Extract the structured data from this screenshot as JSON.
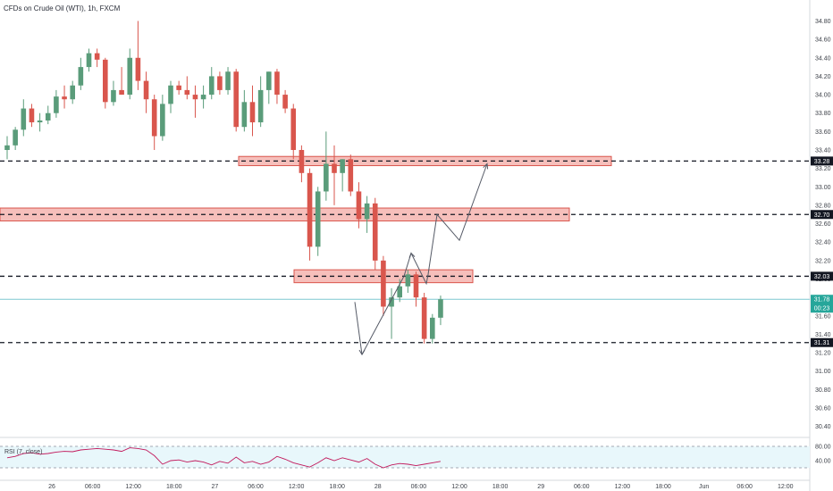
{
  "chart_data": {
    "type": "candlestick",
    "title": "CFDs on Crude Oil (WTI), 1h, FXCM",
    "colors": {
      "up": "#5a9c7a",
      "down": "#d9564d",
      "zone_fill": "#f3a9a4",
      "zone_stroke": "#d9564d",
      "current_line": "#7ec8d0",
      "rsi_line": "#c2185b",
      "rsi_band": "#e8f7fb",
      "tag_dark": "#131722",
      "tag_current": "#26a69a"
    },
    "ylim": [
      30.3,
      34.95
    ],
    "y_ticks": [
      "34.80",
      "34.60",
      "34.40",
      "34.20",
      "34.00",
      "33.80",
      "33.60",
      "33.40",
      "33.20",
      "33.00",
      "32.80",
      "32.60",
      "32.40",
      "32.20",
      "32.00",
      "31.80",
      "31.60",
      "31.40",
      "31.20",
      "31.00",
      "30.80",
      "30.60",
      "30.40"
    ],
    "x_ticks": [
      "26",
      "06:00",
      "12:00",
      "18:00",
      "27",
      "06:00",
      "12:00",
      "18:00",
      "28",
      "06:00",
      "12:00",
      "18:00",
      "29",
      "06:00",
      "12:00",
      "18:00",
      "Jun",
      "06:00",
      "12:00"
    ],
    "levels": [
      {
        "price": 33.28,
        "label": "33.28"
      },
      {
        "price": 32.7,
        "label": "32.70"
      },
      {
        "price": 32.03,
        "label": "32.03"
      },
      {
        "price": 31.31,
        "label": "31.31"
      }
    ],
    "current_price": {
      "price": 31.78,
      "label": "31.78",
      "countdown": "00:23"
    },
    "zones": [
      {
        "from_bar": 28,
        "to_bar": "proj-9",
        "low": 33.23,
        "high": 33.33
      },
      {
        "from_bar": 0,
        "to_bar": "proj-4",
        "low": 32.63,
        "high": 32.77
      },
      {
        "from_bar": 34,
        "to_bar": "proj-0",
        "low": 31.96,
        "high": 32.1
      }
    ],
    "projection_path": [
      {
        "bar": 40,
        "price": 31.18
      },
      {
        "bar": 45,
        "price": 32.03
      },
      {
        "bar": 47,
        "price": 32.28
      },
      {
        "bar": 49,
        "price": 31.95
      },
      {
        "bar": 50,
        "price": 32.05
      },
      {
        "bar": 51,
        "price": 32.7
      },
      {
        "bar": 53,
        "price": 32.42
      },
      {
        "bar": 56,
        "price": 33.25
      }
    ],
    "candles": [
      {
        "o": 33.4,
        "h": 33.55,
        "l": 33.3,
        "c": 33.45
      },
      {
        "o": 33.45,
        "h": 33.65,
        "l": 33.4,
        "c": 33.62
      },
      {
        "o": 33.62,
        "h": 33.95,
        "l": 33.55,
        "c": 33.85
      },
      {
        "o": 33.85,
        "h": 33.9,
        "l": 33.65,
        "c": 33.7
      },
      {
        "o": 33.7,
        "h": 33.8,
        "l": 33.6,
        "c": 33.72
      },
      {
        "o": 33.72,
        "h": 33.88,
        "l": 33.68,
        "c": 33.8
      },
      {
        "o": 33.8,
        "h": 34.05,
        "l": 33.75,
        "c": 33.98
      },
      {
        "o": 33.98,
        "h": 34.1,
        "l": 33.85,
        "c": 33.95
      },
      {
        "o": 33.95,
        "h": 34.15,
        "l": 33.9,
        "c": 34.1
      },
      {
        "o": 34.1,
        "h": 34.4,
        "l": 34.05,
        "c": 34.3
      },
      {
        "o": 34.3,
        "h": 34.5,
        "l": 34.25,
        "c": 34.45
      },
      {
        "o": 34.45,
        "h": 34.5,
        "l": 34.3,
        "c": 34.38
      },
      {
        "o": 34.38,
        "h": 34.4,
        "l": 33.85,
        "c": 33.92
      },
      {
        "o": 33.92,
        "h": 34.15,
        "l": 33.88,
        "c": 34.05
      },
      {
        "o": 34.05,
        "h": 34.3,
        "l": 34.0,
        "c": 34.0
      },
      {
        "o": 34.0,
        "h": 34.5,
        "l": 33.95,
        "c": 34.4
      },
      {
        "o": 34.4,
        "h": 34.8,
        "l": 34.05,
        "c": 34.15
      },
      {
        "o": 34.15,
        "h": 34.25,
        "l": 33.8,
        "c": 33.95
      },
      {
        "o": 33.95,
        "h": 34.0,
        "l": 33.4,
        "c": 33.55
      },
      {
        "o": 33.55,
        "h": 34.0,
        "l": 33.5,
        "c": 33.9
      },
      {
        "o": 33.9,
        "h": 34.15,
        "l": 33.8,
        "c": 34.1
      },
      {
        "o": 34.1,
        "h": 34.15,
        "l": 34.0,
        "c": 34.05
      },
      {
        "o": 34.05,
        "h": 34.2,
        "l": 33.95,
        "c": 34.0
      },
      {
        "o": 34.0,
        "h": 34.1,
        "l": 33.75,
        "c": 33.95
      },
      {
        "o": 33.95,
        "h": 34.1,
        "l": 33.85,
        "c": 34.0
      },
      {
        "o": 34.0,
        "h": 34.3,
        "l": 33.95,
        "c": 34.2
      },
      {
        "o": 34.2,
        "h": 34.25,
        "l": 34.0,
        "c": 34.05
      },
      {
        "o": 34.05,
        "h": 34.3,
        "l": 34.0,
        "c": 34.25
      },
      {
        "o": 34.25,
        "h": 34.28,
        "l": 33.6,
        "c": 33.65
      },
      {
        "o": 33.65,
        "h": 34.05,
        "l": 33.6,
        "c": 33.92
      },
      {
        "o": 33.92,
        "h": 34.1,
        "l": 33.55,
        "c": 33.7
      },
      {
        "o": 33.7,
        "h": 34.2,
        "l": 33.65,
        "c": 34.05
      },
      {
        "o": 34.05,
        "h": 34.25,
        "l": 33.9,
        "c": 34.25
      },
      {
        "o": 34.25,
        "h": 34.28,
        "l": 33.9,
        "c": 34.0
      },
      {
        "o": 34.0,
        "h": 34.05,
        "l": 33.8,
        "c": 33.85
      },
      {
        "o": 33.85,
        "h": 33.9,
        "l": 33.3,
        "c": 33.4
      },
      {
        "o": 33.4,
        "h": 33.45,
        "l": 33.05,
        "c": 33.15
      },
      {
        "o": 33.15,
        "h": 33.2,
        "l": 32.2,
        "c": 32.35
      },
      {
        "o": 32.35,
        "h": 33.0,
        "l": 32.25,
        "c": 32.95
      },
      {
        "o": 32.95,
        "h": 33.6,
        "l": 32.85,
        "c": 33.25
      },
      {
        "o": 33.25,
        "h": 33.45,
        "l": 32.8,
        "c": 33.15
      },
      {
        "o": 33.15,
        "h": 33.3,
        "l": 32.95,
        "c": 33.3
      },
      {
        "o": 33.3,
        "h": 33.35,
        "l": 32.9,
        "c": 32.95
      },
      {
        "o": 32.95,
        "h": 33.05,
        "l": 32.55,
        "c": 32.65
      },
      {
        "o": 32.65,
        "h": 32.9,
        "l": 32.5,
        "c": 32.82
      },
      {
        "o": 32.82,
        "h": 32.88,
        "l": 32.1,
        "c": 32.2
      },
      {
        "o": 32.2,
        "h": 32.25,
        "l": 31.6,
        "c": 31.7
      },
      {
        "o": 31.7,
        "h": 31.9,
        "l": 31.35,
        "c": 31.8
      },
      {
        "o": 31.8,
        "h": 32.0,
        "l": 31.75,
        "c": 31.92
      },
      {
        "o": 31.92,
        "h": 32.1,
        "l": 31.85,
        "c": 32.05
      },
      {
        "o": 32.05,
        "h": 32.08,
        "l": 31.7,
        "c": 31.8
      },
      {
        "o": 31.8,
        "h": 31.85,
        "l": 31.3,
        "c": 31.35
      },
      {
        "o": 31.35,
        "h": 31.62,
        "l": 31.3,
        "c": 31.58
      },
      {
        "o": 31.58,
        "h": 31.82,
        "l": 31.5,
        "c": 31.78
      }
    ],
    "bar_range": {
      "first_bar_x": 4,
      "bar_spacing": 8.4
    },
    "x_tick_bars": [
      6.5,
      12,
      17.5,
      23,
      28.5,
      34,
      39.5,
      45,
      50.5,
      56,
      61.5,
      67,
      72.5,
      78,
      83.5,
      89,
      94.5,
      100,
      105.5
    ],
    "rsi": {
      "label": "RSI (7, close)",
      "ticks": [
        "80.00",
        "40.00"
      ],
      "upper": 80,
      "lower": 20,
      "ylim": [
        0,
        100
      ],
      "values": [
        48,
        52,
        60,
        62,
        58,
        60,
        64,
        66,
        65,
        70,
        72,
        74,
        72,
        70,
        66,
        76,
        74,
        70,
        54,
        30,
        40,
        42,
        36,
        40,
        36,
        28,
        38,
        33,
        50,
        34,
        38,
        30,
        36,
        52,
        44,
        34,
        28,
        22,
        34,
        48,
        40,
        48,
        42,
        36,
        46,
        30,
        20,
        28,
        32,
        30,
        26,
        30,
        34,
        38
      ]
    }
  }
}
